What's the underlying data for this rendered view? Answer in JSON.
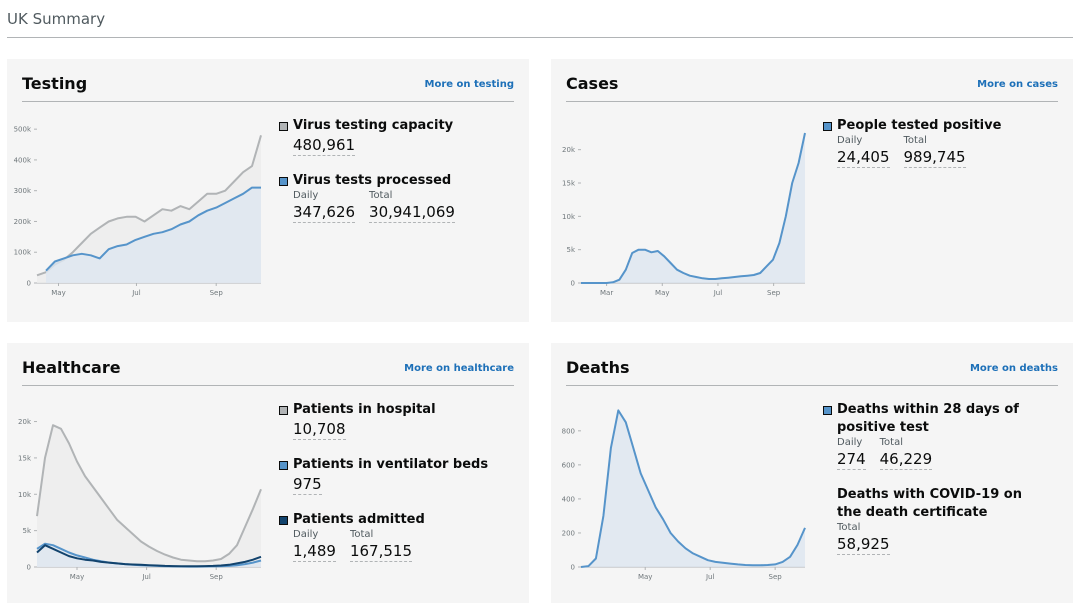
{
  "header": {
    "title": "UK Summary"
  },
  "panels": [
    {
      "title": "Testing",
      "link": "More on testing",
      "chart": {
        "type": "line",
        "xlim": [
          0,
          25
        ],
        "xticks": [
          {
            "value": 2.4,
            "label": "May"
          },
          {
            "value": 11.1,
            "label": "Jul"
          },
          {
            "value": 20,
            "label": "Sep"
          }
        ],
        "ylim": [
          0,
          520000
        ],
        "yticks": [
          0,
          {
            "value": 100000,
            "label": "100k"
          },
          {
            "value": 200000,
            "label": "200k"
          },
          {
            "value": 300000,
            "label": "300k"
          },
          {
            "value": 400000,
            "label": "400k"
          },
          {
            "value": 500000,
            "label": "500k"
          }
        ],
        "series": [
          {
            "color": "#b1b4b6",
            "fill": "#ececec",
            "values": [
              25000,
              35000,
              60000,
              75000,
              100000,
              130000,
              160000,
              180000,
              200000,
              210000,
              215000,
              215000,
              200000,
              220000,
              240000,
              235000,
              250000,
              240000,
              265000,
              290000,
              290000,
              300000,
              330000,
              360000,
              380000,
              480000
            ]
          },
          {
            "color": "#5694ca",
            "fill": "#dde6f0",
            "values": [
              null,
              40000,
              70000,
              80000,
              90000,
              95000,
              90000,
              80000,
              110000,
              120000,
              125000,
              140000,
              150000,
              160000,
              165000,
              175000,
              190000,
              200000,
              220000,
              235000,
              245000,
              260000,
              275000,
              290000,
              310000,
              310000
            ]
          }
        ]
      },
      "metrics": [
        {
          "name": "Virus testing capacity",
          "color": "#b1b4b6",
          "items": [
            {
              "value": "480,961"
            }
          ]
        },
        {
          "name": "Virus tests processed",
          "color": "#5694ca",
          "items": [
            {
              "label": "Daily",
              "value": "347,626"
            },
            {
              "label": "Total",
              "value": "30,941,069"
            }
          ]
        }
      ]
    },
    {
      "title": "Cases",
      "link": "More on cases",
      "chart": {
        "type": "line",
        "xlim": [
          0,
          35
        ],
        "xticks": [
          {
            "value": 4,
            "label": "Mar"
          },
          {
            "value": 12.7,
            "label": "May"
          },
          {
            "value": 21.4,
            "label": "Jul"
          },
          {
            "value": 30.1,
            "label": "Sep"
          }
        ],
        "ylim": [
          0,
          24000
        ],
        "yticks": [
          0,
          {
            "value": 5000,
            "label": "5k"
          },
          {
            "value": 10000,
            "label": "10k"
          },
          {
            "value": 15000,
            "label": "15k"
          },
          {
            "value": 20000,
            "label": "20k"
          }
        ],
        "series": [
          {
            "color": "#5694ca",
            "fill": "#dde6f0",
            "values": [
              0,
              0,
              0,
              0,
              0,
              100,
              500,
              2000,
              4500,
              5000,
              5000,
              4600,
              4800,
              4000,
              3000,
              2000,
              1500,
              1100,
              900,
              700,
              600,
              600,
              700,
              800,
              900,
              1000,
              1100,
              1200,
              1500,
              2500,
              3500,
              6000,
              10000,
              15000,
              18000,
              22500
            ]
          }
        ]
      },
      "metrics": [
        {
          "name": "People tested positive",
          "color": "#5694ca",
          "items": [
            {
              "label": "Daily",
              "value": "24,405"
            },
            {
              "label": "Total",
              "value": "989,745"
            }
          ]
        }
      ]
    },
    {
      "title": "Healthcare",
      "link": "More on healthcare",
      "chart": {
        "type": "line",
        "xlim": [
          0,
          28
        ],
        "xticks": [
          {
            "value": 5,
            "label": "May"
          },
          {
            "value": 13.7,
            "label": "Jul"
          },
          {
            "value": 22.4,
            "label": "Sep"
          }
        ],
        "ylim": [
          0,
          22000
        ],
        "yticks": [
          0,
          {
            "value": 5000,
            "label": "5k"
          },
          {
            "value": 10000,
            "label": "10k"
          },
          {
            "value": 15000,
            "label": "15k"
          },
          {
            "value": 20000,
            "label": "20k"
          }
        ],
        "series": [
          {
            "color": "#b1b4b6",
            "fill": "#ececec",
            "values": [
              7000,
              15000,
              19500,
              19000,
              17000,
              14500,
              12500,
              11000,
              9500,
              8000,
              6500,
              5500,
              4500,
              3500,
              2800,
              2200,
              1700,
              1300,
              1000,
              900,
              800,
              800,
              900,
              1100,
              1800,
              3000,
              5500,
              8000,
              10700
            ]
          },
          {
            "color": "#5694ca",
            "fill": "#dde6f0",
            "values": [
              2500,
              3200,
              3000,
              2500,
              2000,
              1600,
              1300,
              1000,
              800,
              600,
              500,
              400,
              300,
              250,
              200,
              150,
              100,
              80,
              70,
              60,
              60,
              70,
              80,
              100,
              150,
              250,
              400,
              600,
              900
            ]
          },
          {
            "color": "#12436d",
            "values": [
              2000,
              3000,
              2500,
              2000,
              1500,
              1200,
              1000,
              900,
              700,
              600,
              500,
              400,
              350,
              300,
              250,
              200,
              150,
              120,
              100,
              100,
              100,
              120,
              150,
              200,
              300,
              500,
              700,
              1000,
              1400
            ]
          }
        ]
      },
      "metrics": [
        {
          "name": "Patients in hospital",
          "color": "#b1b4b6",
          "items": [
            {
              "value": "10,708"
            }
          ]
        },
        {
          "name": "Patients in ventilator beds",
          "color": "#5694ca",
          "items": [
            {
              "value": "975"
            }
          ]
        },
        {
          "name": "Patients admitted",
          "color": "#12436d",
          "items": [
            {
              "label": "Daily",
              "value": "1,489"
            },
            {
              "label": "Total",
              "value": "167,515"
            }
          ]
        }
      ]
    },
    {
      "title": "Deaths",
      "link": "More on deaths",
      "chart": {
        "type": "line",
        "xlim": [
          0,
          30
        ],
        "xticks": [
          {
            "value": 8.6,
            "label": "May"
          },
          {
            "value": 17.3,
            "label": "Jul"
          },
          {
            "value": 26,
            "label": "Sep"
          }
        ],
        "ylim": [
          0,
          940
        ],
        "yticks": [
          0,
          200,
          400,
          600,
          800
        ],
        "series": [
          {
            "color": "#5694ca",
            "fill": "#dde6f0",
            "values": [
              0,
              5,
              50,
              300,
              700,
              920,
              850,
              700,
              550,
              450,
              350,
              280,
              200,
              150,
              110,
              80,
              60,
              40,
              30,
              25,
              20,
              15,
              12,
              10,
              10,
              12,
              15,
              30,
              60,
              130,
              230
            ]
          }
        ]
      },
      "metrics": [
        {
          "name": "Deaths within 28 days of positive test",
          "color": "#5694ca",
          "items": [
            {
              "label": "Daily",
              "value": "274"
            },
            {
              "label": "Total",
              "value": "46,229"
            }
          ]
        },
        {
          "name": "Deaths with COVID-19 on the death certificate",
          "items": [
            {
              "label": "Total",
              "value": "58,925"
            }
          ]
        }
      ]
    }
  ]
}
